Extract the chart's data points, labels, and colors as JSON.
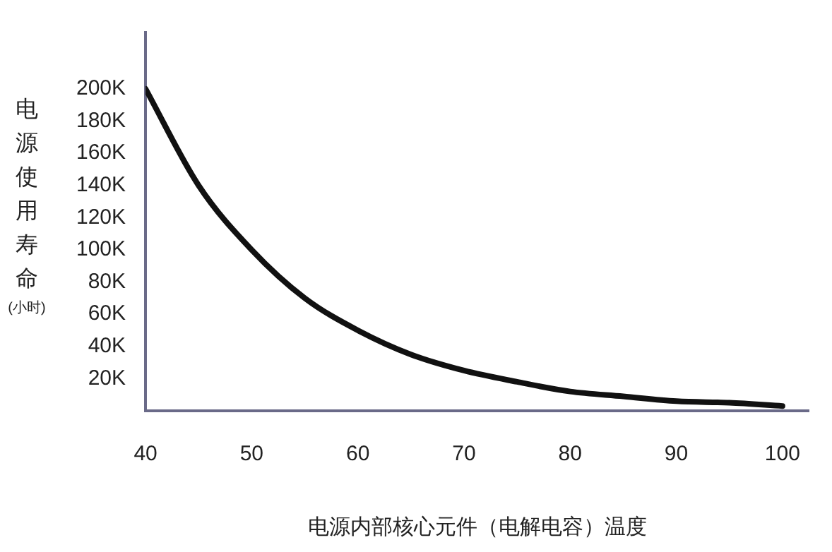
{
  "chart_data": {
    "type": "line",
    "xlabel": "电源内部核心元件（电解电容）温度",
    "ylabel": "电源使用寿命(小时)",
    "x": [
      40,
      45,
      50,
      55,
      60,
      65,
      70,
      75,
      80,
      85,
      90,
      95,
      100
    ],
    "series": [
      {
        "color": "#111111",
        "values": [
          200000,
          140000,
          100000,
          70000,
          50000,
          35000,
          25000,
          18000,
          12000,
          9000,
          6000,
          5000,
          3000
        ]
      }
    ],
    "xlim": [
      40,
      102.5
    ],
    "xticks": [
      40,
      50,
      60,
      70,
      80,
      90,
      100
    ],
    "ylim": [
      0,
      235000
    ],
    "yticks": [
      {
        "value": 20000,
        "label": "20K"
      },
      {
        "value": 40000,
        "label": "40K"
      },
      {
        "value": 60000,
        "label": "60K"
      },
      {
        "value": 80000,
        "label": "80K"
      },
      {
        "value": 100000,
        "label": "100K"
      },
      {
        "value": 120000,
        "label": "120K"
      },
      {
        "value": 140000,
        "label": "140K"
      },
      {
        "value": 160000,
        "label": "160K"
      },
      {
        "value": 180000,
        "label": "180K"
      },
      {
        "value": 200000,
        "label": "200K"
      }
    ],
    "grid": false,
    "legend": false,
    "marker": "none",
    "line_style": "solid"
  }
}
